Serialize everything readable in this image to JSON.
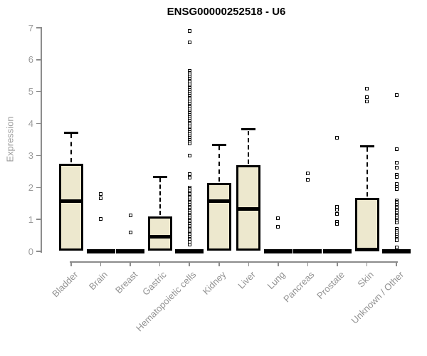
{
  "title": "ENSG00000252518 - U6",
  "colors": {
    "box_fill": "#ede8ce",
    "box_stroke": "#000000",
    "axis_line": "#8c8c8c",
    "axis_text": "#9a9a9a",
    "title_text": "#000000",
    "background": "#ffffff"
  },
  "chart_data": {
    "type": "box",
    "title": "ENSG00000252518 - U6",
    "xlabel": "",
    "ylabel": "Expression",
    "ylim": [
      0,
      7
    ],
    "yticks": [
      0,
      1,
      2,
      3,
      4,
      5,
      6,
      7
    ],
    "grid": false,
    "legend": null,
    "categories": [
      "Bladder",
      "Brain",
      "Breast",
      "Gastric",
      "Hematopoietic cells",
      "Kidney",
      "Liver",
      "Lung",
      "Pancreas",
      "Prostate",
      "Skin",
      "Unknown / Other"
    ],
    "boxes": [
      {
        "category": "Bladder",
        "flat_at_zero": false,
        "q1": 0.02,
        "median": 1.57,
        "q3": 2.75,
        "whisker_high": 3.72,
        "whisker_low": null,
        "outliers": []
      },
      {
        "category": "Brain",
        "flat_at_zero": true,
        "q1": 0,
        "median": 0,
        "q3": 0,
        "whisker_high": null,
        "whisker_low": null,
        "outliers": [
          1.8,
          1.67,
          1.02
        ]
      },
      {
        "category": "Breast",
        "flat_at_zero": true,
        "q1": 0,
        "median": 0,
        "q3": 0,
        "whisker_high": null,
        "whisker_low": null,
        "outliers": [
          1.12,
          0.6
        ]
      },
      {
        "category": "Gastric",
        "flat_at_zero": false,
        "q1": 0.03,
        "median": 0.46,
        "q3": 1.1,
        "whisker_high": 2.34,
        "whisker_low": null,
        "outliers": []
      },
      {
        "category": "Hematopoietic cells",
        "flat_at_zero": true,
        "q1": 0,
        "median": 0,
        "q3": 0,
        "whisker_high": null,
        "whisker_low": null,
        "outliers": [
          6.9,
          6.55,
          5.65,
          5.59,
          5.53,
          5.47,
          5.41,
          5.35,
          5.29,
          5.23,
          5.17,
          5.11,
          5.05,
          4.99,
          4.93,
          4.87,
          4.81,
          4.75,
          4.69,
          4.63,
          4.57,
          4.51,
          4.45,
          4.39,
          4.33,
          4.27,
          4.21,
          4.15,
          4.09,
          4.03,
          3.97,
          3.91,
          3.85,
          3.79,
          3.73,
          3.67,
          3.61,
          3.55,
          3.49,
          3.43,
          3.38,
          3.0,
          2.42,
          2.3,
          2.0,
          1.95,
          1.9,
          1.85,
          1.8,
          1.75,
          1.7,
          1.65,
          1.6,
          1.55,
          1.5,
          1.45,
          1.4,
          1.35,
          1.3,
          1.25,
          1.2,
          1.15,
          1.1,
          1.05,
          1.0,
          0.95,
          0.9,
          0.85,
          0.8,
          0.75,
          0.7,
          0.65,
          0.6,
          0.55,
          0.5,
          0.45,
          0.4,
          0.35,
          0.3,
          0.22
        ]
      },
      {
        "category": "Kidney",
        "flat_at_zero": false,
        "q1": 0.02,
        "median": 1.57,
        "q3": 2.14,
        "whisker_high": 3.34,
        "whisker_low": null,
        "outliers": []
      },
      {
        "category": "Liver",
        "flat_at_zero": false,
        "q1": 0.02,
        "median": 1.33,
        "q3": 2.7,
        "whisker_high": 3.82,
        "whisker_low": null,
        "outliers": []
      },
      {
        "category": "Lung",
        "flat_at_zero": true,
        "q1": 0,
        "median": 0,
        "q3": 0,
        "whisker_high": null,
        "whisker_low": null,
        "outliers": [
          1.03,
          0.78
        ]
      },
      {
        "category": "Pancreas",
        "flat_at_zero": true,
        "q1": 0,
        "median": 0,
        "q3": 0,
        "whisker_high": null,
        "whisker_low": null,
        "outliers": [
          2.45,
          2.25
        ]
      },
      {
        "category": "Prostate",
        "flat_at_zero": true,
        "q1": 0,
        "median": 0,
        "q3": 0,
        "whisker_high": null,
        "whisker_low": null,
        "outliers": [
          3.55,
          1.4,
          1.3,
          1.18,
          0.92,
          0.85
        ]
      },
      {
        "category": "Skin",
        "flat_at_zero": false,
        "q1": 0.02,
        "median": 0.06,
        "q3": 1.68,
        "whisker_high": 3.29,
        "whisker_low": null,
        "outliers": [
          5.1,
          4.82,
          4.7
        ]
      },
      {
        "category": "Unknown / Other",
        "flat_at_zero": true,
        "q1": 0,
        "median": 0,
        "q3": 0,
        "whisker_high": null,
        "whisker_low": null,
        "outliers": [
          4.9,
          3.2,
          2.78,
          2.62,
          2.4,
          2.34,
          2.1,
          2.02,
          1.95,
          1.6,
          1.55,
          1.5,
          1.45,
          1.4,
          1.35,
          1.3,
          1.25,
          1.2,
          1.15,
          1.1,
          1.05,
          1.0,
          0.95,
          0.9,
          0.7,
          0.64,
          0.58,
          0.52,
          0.46,
          0.4,
          0.35,
          0.13
        ]
      }
    ]
  }
}
